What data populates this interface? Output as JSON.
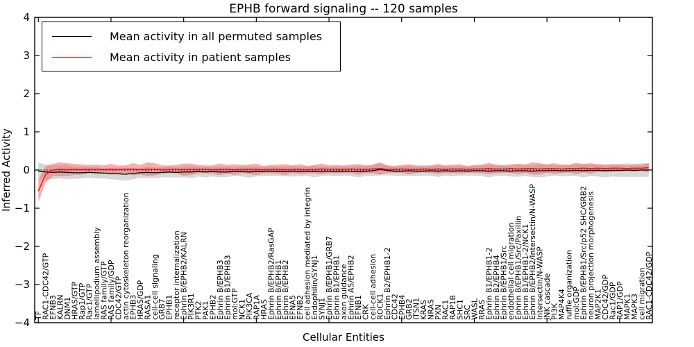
{
  "title": "EPHB forward signaling -- 120 samples",
  "axes": {
    "xlabel": "Cellular Entities",
    "ylabel": "Inferred Activity",
    "ytick_labels": [
      "4",
      "3",
      "2",
      "1",
      "0",
      "−1",
      "−2",
      "−3",
      "−4"
    ]
  },
  "legend": {
    "items": [
      {
        "label": "Mean activity in all permuted samples",
        "color": "#000000"
      },
      {
        "label": "Mean activity in patient samples",
        "color": "#ff0000"
      }
    ]
  },
  "chart_data": {
    "type": "line",
    "title": "EPHB forward signaling -- 120 samples",
    "xlabel": "Cellular Entities",
    "ylabel": "Inferred Activity",
    "ylim": [
      -4,
      4
    ],
    "yticks": [
      4,
      3,
      2,
      1,
      0,
      -1,
      -2,
      -3,
      -4
    ],
    "xtick_major_every": 10,
    "grid": false,
    "legend_position": "upper left",
    "zero_line": {
      "y": 0,
      "style": "dotted",
      "color": "#000000"
    },
    "categories": [
      "TF",
      "RAC1-CDC42/GTP",
      "EFNB3",
      "KALRN",
      "DNM1",
      "HRAS/GTP",
      "Rap1/GTP",
      "Rac1/GTP",
      "lamellipodium assembly",
      "RAS family/GTP",
      "RAS family/GDP",
      "CDC42/GTP",
      "actin cytoskeleton reorganization",
      "EPHB3",
      "HRAS/GDP",
      "RASA1",
      "cell-cell signaling",
      "GRB7",
      "EPHB1",
      "receptor internalization",
      "Ephrin B/EPHB2/KALRN",
      "PIK3R1",
      "PTK2",
      "PAK1",
      "EPHB2",
      "Ephrin B/EPHB3",
      "Ephrin B1/EPHB3",
      "mol:GTP",
      "NCK1",
      "PIK3CA",
      "RAP1A",
      "HRAS",
      "Ephrin B/EPHB2/RasGAP",
      "Ephrin B/EPHB1",
      "Ephrin B/EPHB2",
      "EFNA5",
      "EFNB2",
      "cell adhesion mediated by integrin",
      "Endophilin/SYNJ1",
      "SYNJ1",
      "Ephrin B/EPHB1/GRB7",
      "Ephrin B1/EPHB1",
      "axon guidance",
      "Ephrin A5/EPHB2",
      "EFNB1",
      "CRK",
      "cell-cell adhesion",
      "ROCK1",
      "Ephrin B2/EPHB1-2",
      "CDC42",
      "EPHB4",
      "GRB2",
      "ITSN1",
      "KRAS",
      "NRAS",
      "PXN",
      "RAC1",
      "RAP1B",
      "SHC1",
      "SRC",
      "WASL",
      "RRAS",
      "Ephrin B1/EPHB1-2",
      "Ephrin B2/EPHB4",
      "Ephrin B/EPHB1/Src",
      "endothelial cell migration",
      "Ephrin B/EPHB1/Src/Paxillin",
      "Ephrin B1/EPHB1-2/NCK1",
      "Ephrin B/EPHB2/Intersectin/N-WASP",
      "Intersectin/N-WASP",
      "JNK cascade",
      "PI3K",
      "MAP4K4",
      "ruffle organization",
      "mol:GDP",
      "Ephrin B/EPHB1/Src/p52 SHC/GRB2",
      "neuron projection morphogenesis",
      "MAP2K1",
      "CDC42/GDP",
      "Rac1/GDP",
      "RAP1/GDP",
      "MAPK1",
      "MAPK3",
      "cell migration",
      "RAC1-CDC42/GDP"
    ],
    "series": [
      {
        "name": "Mean activity in all permuted samples",
        "color": "#000000",
        "band_color": "#d4d4d4",
        "values": [
          -0.03,
          -0.05,
          -0.06,
          -0.05,
          -0.06,
          -0.07,
          -0.07,
          -0.06,
          -0.07,
          -0.08,
          -0.09,
          -0.1,
          -0.11,
          -0.09,
          -0.07,
          -0.06,
          -0.07,
          -0.06,
          -0.05,
          -0.06,
          -0.05,
          -0.05,
          -0.04,
          -0.05,
          -0.04,
          -0.05,
          -0.05,
          -0.04,
          -0.04,
          -0.05,
          -0.04,
          -0.04,
          -0.03,
          -0.04,
          -0.04,
          -0.03,
          -0.04,
          -0.03,
          -0.04,
          -0.03,
          -0.03,
          -0.04,
          -0.03,
          -0.03,
          -0.04,
          -0.03,
          -0.02,
          0.02,
          -0.01,
          -0.03,
          -0.03,
          -0.02,
          -0.03,
          -0.03,
          -0.02,
          -0.03,
          -0.02,
          -0.03,
          -0.02,
          -0.03,
          -0.02,
          -0.02,
          -0.03,
          -0.02,
          -0.02,
          -0.03,
          -0.02,
          -0.02,
          -0.03,
          -0.02,
          -0.02,
          -0.01,
          -0.02,
          -0.02,
          -0.01,
          -0.02,
          -0.01,
          -0.01,
          -0.02,
          -0.01,
          -0.01,
          0.0,
          -0.01,
          0.0,
          0.0
        ],
        "band_halfwidth": [
          0.22,
          0.2,
          0.18,
          0.17,
          0.18,
          0.16,
          0.15,
          0.14,
          0.15,
          0.14,
          0.15,
          0.16,
          0.17,
          0.15,
          0.13,
          0.15,
          0.14,
          0.13,
          0.14,
          0.13,
          0.14,
          0.16,
          0.13,
          0.14,
          0.13,
          0.14,
          0.13,
          0.12,
          0.13,
          0.15,
          0.13,
          0.12,
          0.13,
          0.12,
          0.13,
          0.14,
          0.13,
          0.12,
          0.15,
          0.13,
          0.12,
          0.13,
          0.12,
          0.13,
          0.15,
          0.13,
          0.14,
          0.16,
          0.13,
          0.12,
          0.13,
          0.14,
          0.13,
          0.12,
          0.13,
          0.15,
          0.13,
          0.14,
          0.13,
          0.12,
          0.13,
          0.14,
          0.16,
          0.14,
          0.13,
          0.14,
          0.16,
          0.14,
          0.15,
          0.17,
          0.15,
          0.14,
          0.15,
          0.14,
          0.15,
          0.17,
          0.15,
          0.16,
          0.17,
          0.16,
          0.17,
          0.18,
          0.17,
          0.18,
          0.18
        ]
      },
      {
        "name": "Mean activity in patient samples",
        "color": "#ff0000",
        "band_color": "#ee5f5f",
        "values": [
          -0.55,
          -0.12,
          0.0,
          0.02,
          0.01,
          0.02,
          0.01,
          0.02,
          0.02,
          0.01,
          0.02,
          0.01,
          0.02,
          0.02,
          0.01,
          0.02,
          0.02,
          0.01,
          0.02,
          0.02,
          0.01,
          0.02,
          0.02,
          0.02,
          0.01,
          0.02,
          0.02,
          0.01,
          0.02,
          0.02,
          0.02,
          0.01,
          0.02,
          0.02,
          0.01,
          0.02,
          0.02,
          0.01,
          0.02,
          0.03,
          0.02,
          0.02,
          0.02,
          0.03,
          0.02,
          0.02,
          0.03,
          0.04,
          0.02,
          0.02,
          0.03,
          0.02,
          0.02,
          0.03,
          0.02,
          0.03,
          0.02,
          0.03,
          0.03,
          0.02,
          0.03,
          0.03,
          0.04,
          0.03,
          0.03,
          0.04,
          0.03,
          0.04,
          0.04,
          0.03,
          0.04,
          0.04,
          0.03,
          0.04,
          0.04,
          0.05,
          0.04,
          0.05,
          0.04,
          0.05,
          0.05,
          0.04,
          0.05,
          0.05,
          0.06
        ],
        "band_halfwidth": [
          0.28,
          0.22,
          0.16,
          0.18,
          0.17,
          0.14,
          0.13,
          0.11,
          0.12,
          0.11,
          0.14,
          0.11,
          0.1,
          0.16,
          0.12,
          0.18,
          0.16,
          0.11,
          0.1,
          0.11,
          0.16,
          0.15,
          0.11,
          0.1,
          0.11,
          0.15,
          0.11,
          0.14,
          0.11,
          0.12,
          0.15,
          0.1,
          0.11,
          0.12,
          0.14,
          0.1,
          0.13,
          0.1,
          0.11,
          0.14,
          0.1,
          0.11,
          0.1,
          0.11,
          0.14,
          0.1,
          0.11,
          0.16,
          0.1,
          0.09,
          0.1,
          0.13,
          0.1,
          0.09,
          0.1,
          0.13,
          0.1,
          0.11,
          0.12,
          0.09,
          0.1,
          0.11,
          0.15,
          0.11,
          0.1,
          0.11,
          0.14,
          0.11,
          0.16,
          0.15,
          0.11,
          0.14,
          0.11,
          0.1,
          0.15,
          0.11,
          0.14,
          0.1,
          0.09,
          0.1,
          0.09,
          0.08,
          0.09,
          0.08,
          0.12
        ]
      }
    ]
  }
}
